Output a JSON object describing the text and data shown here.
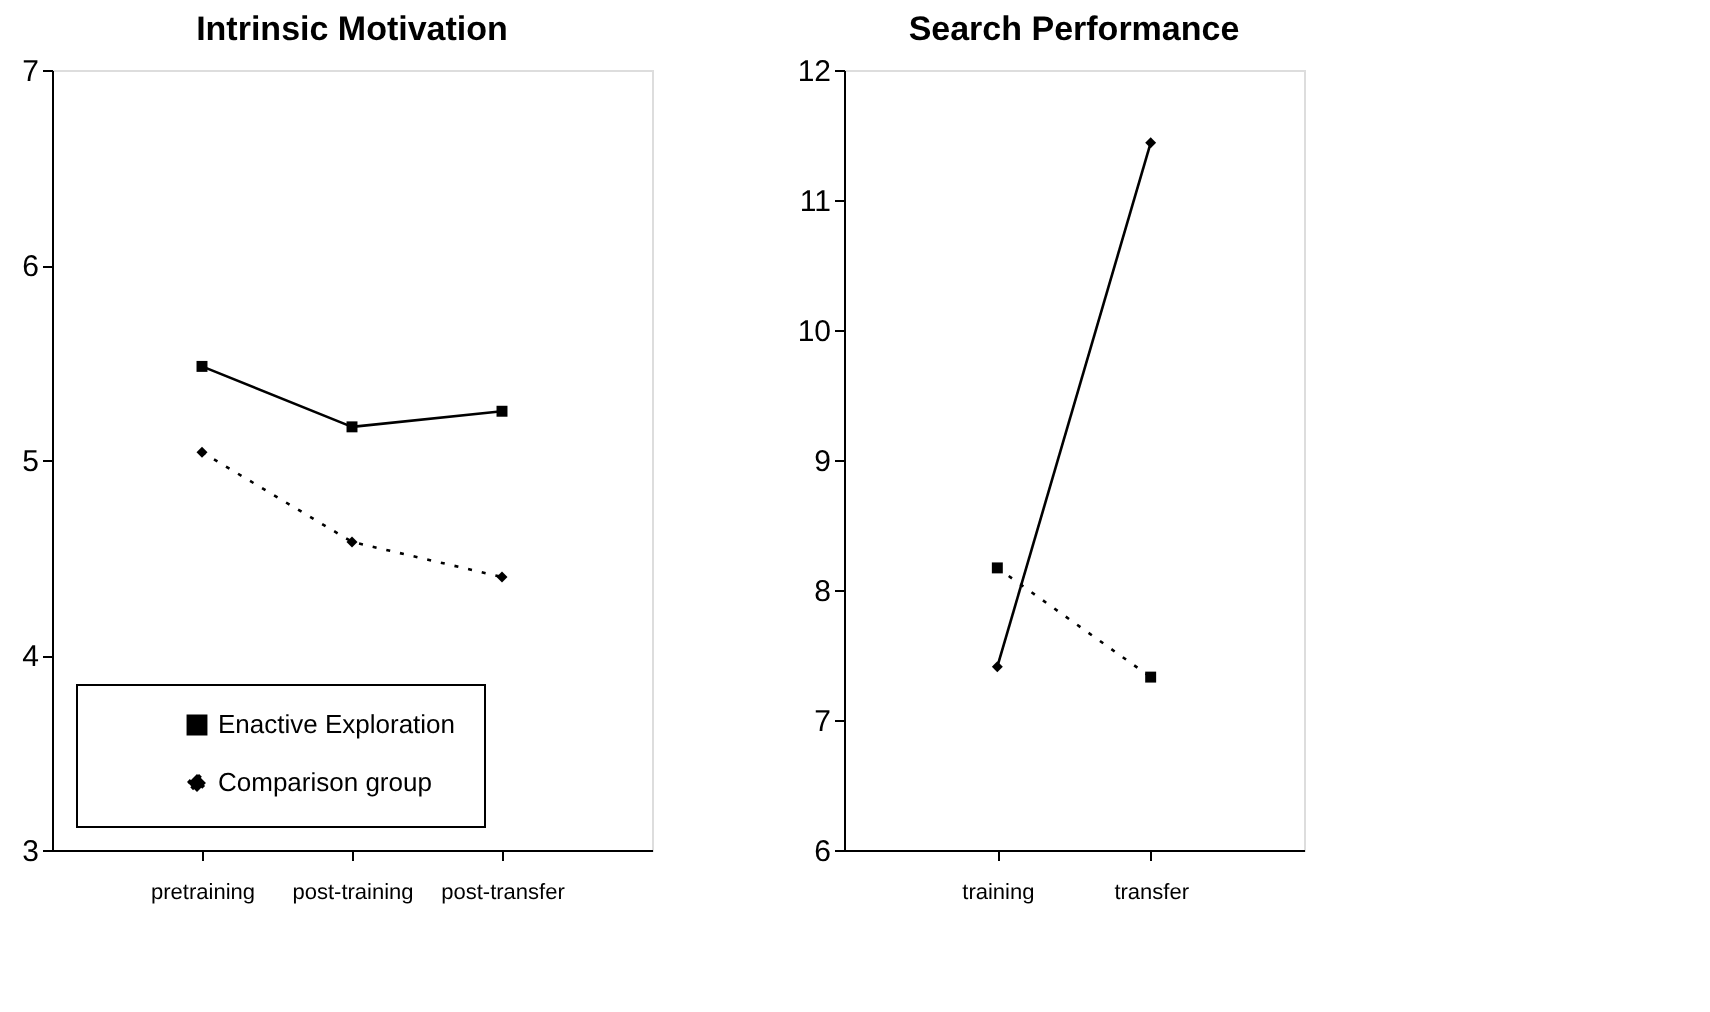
{
  "chart_data": [
    {
      "type": "line",
      "title": "Intrinsic Motivation",
      "categories": [
        "pretraining",
        "post-training",
        "post-transfer"
      ],
      "ylim": [
        3,
        7
      ],
      "yticks": [
        3,
        4,
        5,
        6,
        7
      ],
      "grid": false,
      "legend": "bottom left",
      "series": [
        {
          "name": "Enactive Exploration",
          "color": "#000000",
          "marker": "square",
          "line_style": "solid",
          "values": [
            5.48,
            5.17,
            5.25
          ]
        },
        {
          "name": "Comparison group",
          "color": "#000000",
          "marker": "diamond",
          "line_style": "dotted",
          "values": [
            5.04,
            4.58,
            4.4
          ]
        }
      ]
    },
    {
      "type": "line",
      "title": "Search Performance",
      "categories": [
        "training",
        "transfer"
      ],
      "ylim": [
        6,
        12
      ],
      "yticks": [
        6,
        7,
        8,
        9,
        10,
        11,
        12
      ],
      "grid": false,
      "series": [
        {
          "color": "#000000",
          "marker": "diamond",
          "line_style": "solid",
          "values": [
            7.41,
            11.44
          ]
        },
        {
          "color": "#000000",
          "marker": "square",
          "line_style": "dotted",
          "values": [
            8.17,
            7.33
          ]
        }
      ]
    }
  ]
}
